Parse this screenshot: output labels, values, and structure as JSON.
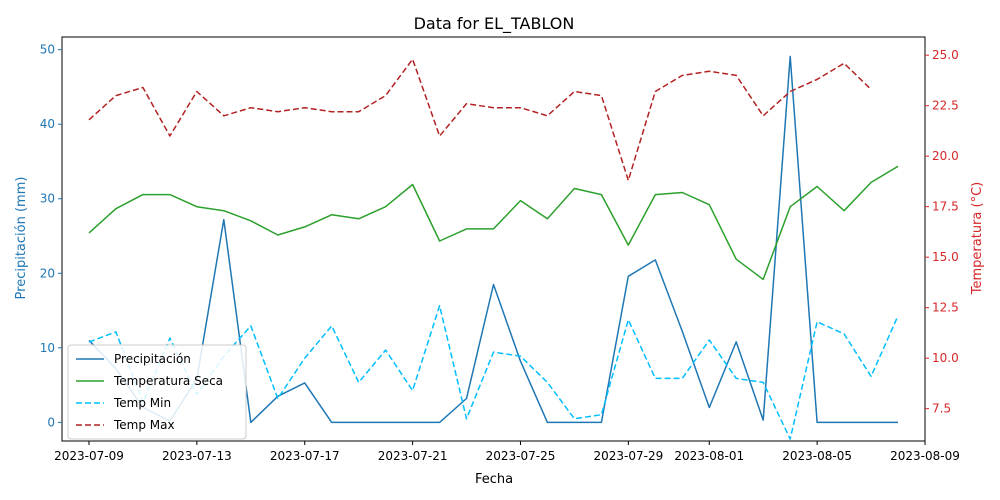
{
  "chart_data": {
    "type": "line",
    "title": "Data for EL_TABLON",
    "xlabel": "Fecha",
    "ylabel_left": "Precipitación (mm)",
    "ylabel_right": "Temperatura (°C)",
    "xlim": [
      "2023-07-08",
      "2023-08-09"
    ],
    "ylim_left": [
      -2.5,
      51.7
    ],
    "ylim_right": [
      5.9,
      25.9
    ],
    "x_ticks": [
      "2023-07-09",
      "2023-07-13",
      "2023-07-17",
      "2023-07-21",
      "2023-07-25",
      "2023-07-29",
      "2023-08-01",
      "2023-08-05",
      "2023-08-09"
    ],
    "y_ticks_left": [
      0,
      10,
      20,
      30,
      40,
      50
    ],
    "y_ticks_right": [
      7.5,
      10.0,
      12.5,
      15.0,
      17.5,
      20.0,
      22.5,
      25.0
    ],
    "colors": {
      "left_axis": "#1f77b4",
      "right_axis": "#d62728",
      "precip": "#1f77b4",
      "temp_seca": "#2ca02c",
      "temp_min": "#00bfff",
      "temp_max": "#b22222"
    },
    "x": [
      "2023-07-09",
      "2023-07-10",
      "2023-07-11",
      "2023-07-12",
      "2023-07-13",
      "2023-07-14",
      "2023-07-15",
      "2023-07-16",
      "2023-07-17",
      "2023-07-18",
      "2023-07-19",
      "2023-07-20",
      "2023-07-21",
      "2023-07-22",
      "2023-07-23",
      "2023-07-24",
      "2023-07-25",
      "2023-07-26",
      "2023-07-27",
      "2023-07-28",
      "2023-07-29",
      "2023-07-30",
      "2023-07-31",
      "2023-08-01",
      "2023-08-02",
      "2023-08-03",
      "2023-08-04",
      "2023-08-05",
      "2023-08-06",
      "2023-08-07",
      "2023-08-08"
    ],
    "series": [
      {
        "name": "Precipitación",
        "axis": "left",
        "style": "solid",
        "color": "#1f77b4",
        "values": [
          11.0,
          7.2,
          2.0,
          0.2,
          5.8,
          27.2,
          0.0,
          3.5,
          5.3,
          0.0,
          0.0,
          0.0,
          0.0,
          0.0,
          3.2,
          18.5,
          8.2,
          0.0,
          0.0,
          0.0,
          19.6,
          21.8,
          12.2,
          2.0,
          10.8,
          0.3,
          49.1,
          0.0,
          0.0,
          0.0,
          0.0
        ]
      },
      {
        "name": "Temperatura Seca",
        "axis": "right",
        "style": "solid",
        "color": "#2ca02c",
        "values": [
          16.2,
          17.4,
          18.1,
          18.1,
          17.5,
          17.3,
          16.8,
          16.1,
          16.5,
          17.1,
          16.9,
          17.5,
          18.6,
          15.8,
          16.4,
          16.4,
          17.8,
          16.9,
          18.4,
          18.1,
          15.6,
          18.1,
          18.2,
          17.6,
          14.9,
          13.9,
          17.5,
          18.5,
          17.3,
          18.7,
          19.5
        ]
      },
      {
        "name": "Temp Min",
        "axis": "right",
        "style": "dashed",
        "color": "#00bfff",
        "values": [
          10.8,
          11.3,
          7.8,
          11.0,
          8.2,
          10.1,
          11.6,
          8.0,
          10.0,
          11.6,
          8.8,
          10.4,
          8.4,
          12.6,
          7.0,
          10.3,
          10.1,
          8.8,
          7.0,
          7.2,
          11.9,
          9.0,
          9.0,
          10.9,
          9.0,
          8.8,
          6.0,
          11.8,
          11.2,
          9.1,
          12.1
        ]
      },
      {
        "name": "Temp Max",
        "axis": "right",
        "style": "dashed",
        "color": "#b22222",
        "values": [
          21.8,
          23.0,
          23.4,
          21.0,
          23.2,
          22.0,
          22.4,
          22.2,
          22.4,
          22.2,
          22.2,
          23.0,
          24.8,
          21.0,
          22.6,
          22.4,
          22.4,
          22.0,
          23.2,
          23.0,
          18.8,
          23.2,
          24.0,
          24.2,
          24.0,
          22.0,
          23.2,
          23.8,
          24.6,
          23.3,
          null
        ]
      }
    ],
    "legend": "lower-left"
  }
}
